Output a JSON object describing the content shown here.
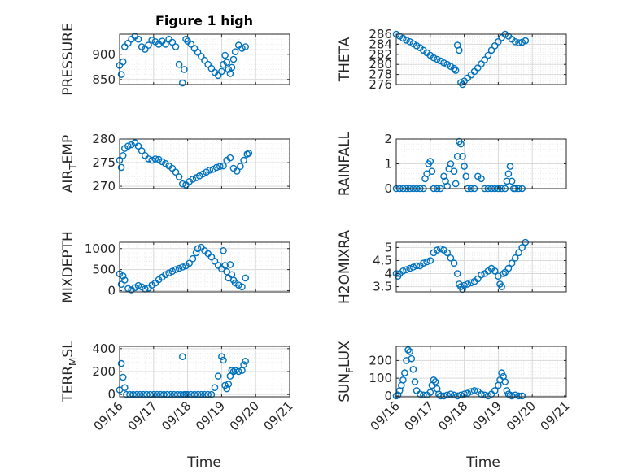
{
  "figure": {
    "title": "Figure 1 high",
    "xlabel": "Time",
    "x_tick_labels": [
      "09/16",
      "09/17",
      "09/18",
      "09/19",
      "09/20",
      "09/21"
    ],
    "marker_color": "#0072BD",
    "grid_color": "#d9d9d9",
    "axis_color": "#262626"
  },
  "chart_data": [
    {
      "type": "scatter",
      "ylabel": "PRESSURE",
      "xlim": [
        0,
        5
      ],
      "ylim": [
        840,
        940
      ],
      "yticks": [
        850,
        900
      ],
      "x": [
        0.0,
        0.05,
        0.1,
        0.15,
        0.25,
        0.35,
        0.45,
        0.55,
        0.65,
        0.75,
        0.85,
        0.95,
        1.05,
        1.15,
        1.25,
        1.35,
        1.45,
        1.55,
        1.65,
        1.75,
        1.85,
        1.9,
        1.95,
        2.0,
        2.1,
        2.2,
        2.3,
        2.4,
        2.5,
        2.6,
        2.7,
        2.8,
        2.9,
        3.0,
        3.05,
        3.1,
        3.15,
        3.2,
        3.25,
        3.3,
        3.35,
        3.4,
        3.5,
        3.6,
        3.7
      ],
      "y": [
        878,
        860,
        885,
        915,
        922,
        930,
        936,
        930,
        915,
        910,
        918,
        928,
        925,
        920,
        926,
        920,
        930,
        924,
        915,
        880,
        843,
        870,
        930,
        926,
        920,
        912,
        904,
        896,
        888,
        880,
        872,
        864,
        858,
        866,
        880,
        898,
        884,
        870,
        862,
        874,
        890,
        905,
        918,
        912,
        915
      ]
    },
    {
      "type": "scatter",
      "ylabel": "THETA",
      "xlim": [
        0,
        5
      ],
      "ylim": [
        276,
        286
      ],
      "yticks": [
        276,
        278,
        280,
        282,
        284,
        286
      ],
      "x": [
        0.0,
        0.1,
        0.2,
        0.3,
        0.4,
        0.5,
        0.6,
        0.7,
        0.8,
        0.9,
        1.0,
        1.1,
        1.2,
        1.3,
        1.4,
        1.5,
        1.6,
        1.7,
        1.75,
        1.8,
        1.85,
        1.9,
        1.95,
        2.0,
        2.1,
        2.2,
        2.3,
        2.4,
        2.5,
        2.6,
        2.7,
        2.8,
        2.9,
        3.0,
        3.1,
        3.2,
        3.3,
        3.4,
        3.5,
        3.6,
        3.7,
        3.8
      ],
      "y": [
        286,
        285.6,
        285.2,
        284.8,
        284.5,
        284.1,
        283.7,
        283.3,
        282.8,
        282.3,
        281.8,
        281.3,
        281.0,
        280.7,
        280.3,
        280.0,
        279.6,
        279.2,
        278.8,
        283.8,
        282.8,
        276.4,
        276.0,
        276.7,
        277.3,
        277.9,
        278.6,
        279.3,
        280.1,
        280.9,
        281.8,
        282.8,
        283.7,
        284.5,
        285.3,
        286.0,
        285.6,
        285.0,
        284.5,
        284.3,
        284.4,
        284.7
      ]
    },
    {
      "type": "scatter",
      "ylabel": "AIR_TEMP",
      "xlim": [
        0,
        5
      ],
      "ylim": [
        269.5,
        280
      ],
      "yticks": [
        270,
        275,
        280
      ],
      "x": [
        0.0,
        0.05,
        0.1,
        0.15,
        0.25,
        0.35,
        0.45,
        0.55,
        0.65,
        0.75,
        0.85,
        0.95,
        1.05,
        1.15,
        1.25,
        1.35,
        1.45,
        1.55,
        1.65,
        1.75,
        1.85,
        1.95,
        2.05,
        2.15,
        2.25,
        2.35,
        2.45,
        2.55,
        2.65,
        2.75,
        2.85,
        2.95,
        3.05,
        3.15,
        3.25,
        3.35,
        3.45,
        3.55,
        3.65,
        3.75,
        3.8
      ],
      "y": [
        275.5,
        274.0,
        276.5,
        278.0,
        278.5,
        278.8,
        279.2,
        278.5,
        277.5,
        276.5,
        275.8,
        275.5,
        275.8,
        275.7,
        275.2,
        274.8,
        274.3,
        273.8,
        273.0,
        272.0,
        270.5,
        270.3,
        271.0,
        271.5,
        271.8,
        272.2,
        272.6,
        273.0,
        273.4,
        273.6,
        274.0,
        274.2,
        274.3,
        275.5,
        276.0,
        273.8,
        273.2,
        274.2,
        275.5,
        276.8,
        277.0
      ]
    },
    {
      "type": "scatter",
      "ylabel": "RAINFALL",
      "xlim": [
        0,
        5
      ],
      "ylim": [
        0,
        2
      ],
      "yticks": [
        0,
        1,
        2
      ],
      "x": [
        0.0,
        0.1,
        0.2,
        0.3,
        0.4,
        0.5,
        0.6,
        0.7,
        0.8,
        0.85,
        0.9,
        0.95,
        1.0,
        1.05,
        1.1,
        1.2,
        1.3,
        1.4,
        1.45,
        1.5,
        1.55,
        1.6,
        1.7,
        1.75,
        1.8,
        1.85,
        1.9,
        1.95,
        2.0,
        2.05,
        2.1,
        2.2,
        2.3,
        2.4,
        2.5,
        2.6,
        2.7,
        2.8,
        2.9,
        3.0,
        3.1,
        3.2,
        3.25,
        3.3,
        3.35,
        3.4,
        3.45,
        3.5,
        3.6,
        3.7
      ],
      "y": [
        0,
        0,
        0,
        0,
        0,
        0,
        0,
        0,
        0,
        0.4,
        0.6,
        1.0,
        1.1,
        0.7,
        0,
        0,
        0,
        0.5,
        0.3,
        0.1,
        0.8,
        1.0,
        0.7,
        0.2,
        1.3,
        1.9,
        1.8,
        1.3,
        0.9,
        0.5,
        0,
        0,
        0,
        0.5,
        0.4,
        0,
        0,
        0,
        0,
        0,
        0,
        0,
        0.3,
        0.6,
        0.9,
        0.3,
        0,
        0,
        0,
        0
      ]
    },
    {
      "type": "scatter",
      "ylabel": "MIXDEPTH",
      "xlim": [
        0,
        5
      ],
      "ylim": [
        -30,
        1150
      ],
      "yticks": [
        0,
        500,
        1000
      ],
      "x": [
        0.0,
        0.05,
        0.1,
        0.15,
        0.25,
        0.35,
        0.45,
        0.55,
        0.65,
        0.75,
        0.85,
        0.95,
        1.05,
        1.15,
        1.25,
        1.35,
        1.45,
        1.55,
        1.65,
        1.75,
        1.85,
        1.95,
        2.05,
        2.15,
        2.25,
        2.3,
        2.4,
        2.5,
        2.6,
        2.7,
        2.8,
        2.9,
        3.0,
        3.05,
        3.1,
        3.15,
        3.2,
        3.25,
        3.3,
        3.35,
        3.4,
        3.5,
        3.6,
        3.7
      ],
      "y": [
        400,
        150,
        350,
        250,
        50,
        20,
        70,
        120,
        90,
        40,
        60,
        130,
        180,
        260,
        320,
        380,
        420,
        460,
        500,
        530,
        560,
        590,
        650,
        760,
        900,
        1000,
        1030,
        950,
        880,
        800,
        700,
        600,
        520,
        950,
        600,
        450,
        300,
        620,
        380,
        250,
        180,
        130,
        90,
        300
      ]
    },
    {
      "type": "scatter",
      "ylabel": "H2OMIXRA",
      "xlim": [
        0,
        5
      ],
      "ylim": [
        3.3,
        5.2
      ],
      "yticks": [
        3.5,
        4,
        4.5,
        5
      ],
      "x": [
        0.0,
        0.05,
        0.1,
        0.2,
        0.3,
        0.4,
        0.5,
        0.6,
        0.7,
        0.8,
        0.9,
        1.0,
        1.1,
        1.2,
        1.3,
        1.4,
        1.5,
        1.6,
        1.7,
        1.8,
        1.85,
        1.9,
        1.95,
        2.0,
        2.1,
        2.2,
        2.3,
        2.4,
        2.5,
        2.6,
        2.7,
        2.8,
        2.9,
        3.0,
        3.05,
        3.1,
        3.15,
        3.2,
        3.3,
        3.4,
        3.5,
        3.6,
        3.7,
        3.8
      ],
      "y": [
        4.0,
        3.9,
        4.0,
        4.1,
        4.15,
        4.2,
        4.25,
        4.3,
        4.3,
        4.4,
        4.45,
        4.5,
        4.8,
        4.9,
        4.95,
        4.9,
        4.8,
        4.6,
        4.4,
        4.0,
        3.6,
        3.5,
        3.4,
        3.55,
        3.6,
        3.65,
        3.7,
        3.8,
        3.95,
        4.0,
        4.1,
        4.2,
        4.1,
        3.9,
        3.6,
        3.5,
        4.0,
        4.05,
        4.2,
        4.4,
        4.6,
        4.8,
        5.0,
        5.2
      ]
    },
    {
      "type": "scatter",
      "ylabel": "TERR_MSL",
      "xlim": [
        0,
        5
      ],
      "ylim": [
        -20,
        420
      ],
      "yticks": [
        0,
        200,
        400
      ],
      "x": [
        0.0,
        0.05,
        0.1,
        0.15,
        0.2,
        0.3,
        0.4,
        0.5,
        0.6,
        0.7,
        0.8,
        0.9,
        1.0,
        1.1,
        1.2,
        1.3,
        1.4,
        1.5,
        1.6,
        1.7,
        1.8,
        1.85,
        1.9,
        1.95,
        2.0,
        2.1,
        2.2,
        2.3,
        2.4,
        2.5,
        2.6,
        2.7,
        2.8,
        2.9,
        3.0,
        3.05,
        3.1,
        3.15,
        3.2,
        3.25,
        3.3,
        3.35,
        3.4,
        3.5,
        3.6,
        3.65,
        3.7
      ],
      "y": [
        40,
        270,
        150,
        60,
        0,
        0,
        0,
        0,
        0,
        0,
        0,
        0,
        0,
        0,
        0,
        0,
        0,
        0,
        0,
        0,
        0,
        330,
        0,
        0,
        0,
        0,
        0,
        0,
        0,
        0,
        0,
        0,
        60,
        160,
        330,
        300,
        80,
        50,
        90,
        160,
        210,
        200,
        210,
        200,
        210,
        260,
        290
      ]
    },
    {
      "type": "scatter",
      "ylabel": "SUN_FLUX",
      "xlim": [
        0,
        5
      ],
      "ylim": [
        -5,
        280
      ],
      "yticks": [
        0,
        100,
        200
      ],
      "x": [
        0.0,
        0.05,
        0.1,
        0.15,
        0.2,
        0.25,
        0.3,
        0.35,
        0.4,
        0.45,
        0.5,
        0.55,
        0.6,
        0.7,
        0.8,
        0.9,
        1.0,
        1.05,
        1.1,
        1.15,
        1.2,
        1.25,
        1.3,
        1.4,
        1.5,
        1.6,
        1.7,
        1.8,
        1.9,
        2.0,
        2.1,
        2.2,
        2.3,
        2.4,
        2.5,
        2.6,
        2.7,
        2.8,
        2.9,
        3.0,
        3.05,
        3.1,
        3.15,
        3.2,
        3.25,
        3.3,
        3.35,
        3.4,
        3.5,
        3.6,
        3.7
      ],
      "y": [
        0,
        5,
        30,
        60,
        90,
        130,
        200,
        260,
        250,
        210,
        150,
        80,
        30,
        10,
        5,
        5,
        20,
        60,
        90,
        80,
        40,
        10,
        0,
        0,
        5,
        10,
        5,
        0,
        5,
        10,
        15,
        25,
        30,
        25,
        10,
        5,
        0,
        10,
        30,
        60,
        90,
        130,
        110,
        80,
        30,
        10,
        5,
        0,
        5,
        0,
        0
      ]
    }
  ]
}
